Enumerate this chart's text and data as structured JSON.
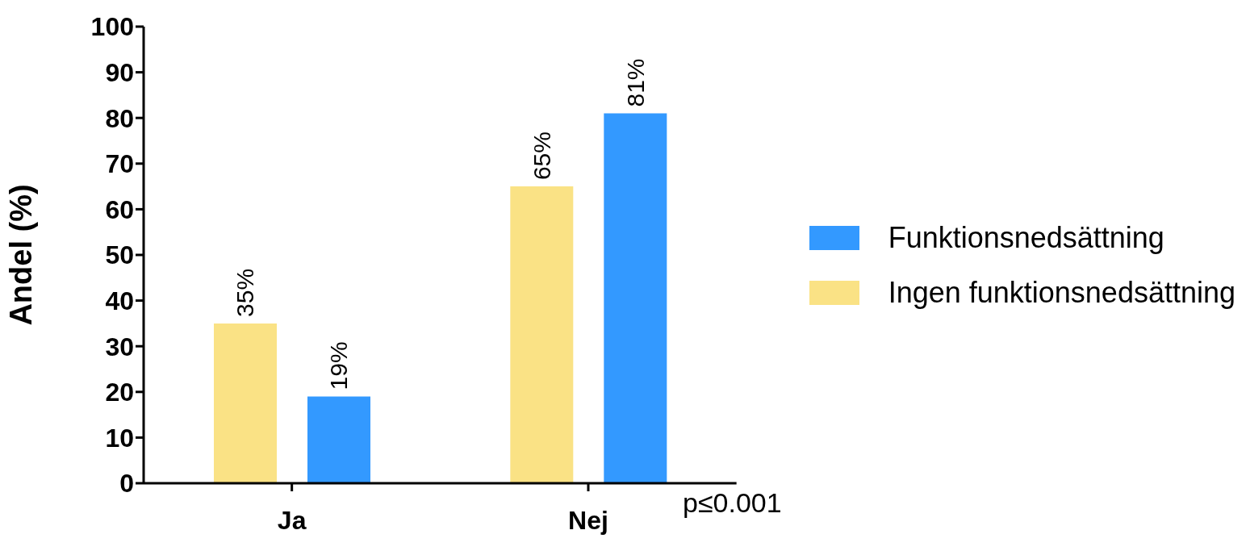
{
  "chart_data": {
    "type": "bar",
    "categories": [
      "Ja",
      "Nej"
    ],
    "ylabel": "Andel (%)",
    "series": [
      {
        "name": "Ingen funktionsnedsättning",
        "color": "#fae285",
        "values": [
          35,
          65
        ],
        "value_labels": [
          "35%",
          "65%"
        ]
      },
      {
        "name": "Funktionsnedsättning",
        "color": "#3399ff",
        "values": [
          19,
          81
        ],
        "value_labels": [
          "19%",
          "81%"
        ]
      }
    ],
    "ylim": [
      0,
      100
    ],
    "yticks": [
      0,
      10,
      20,
      30,
      40,
      50,
      60,
      70,
      80,
      90,
      100
    ],
    "grid": false,
    "legend": "right",
    "annotations": [
      "p≤0.001"
    ]
  }
}
